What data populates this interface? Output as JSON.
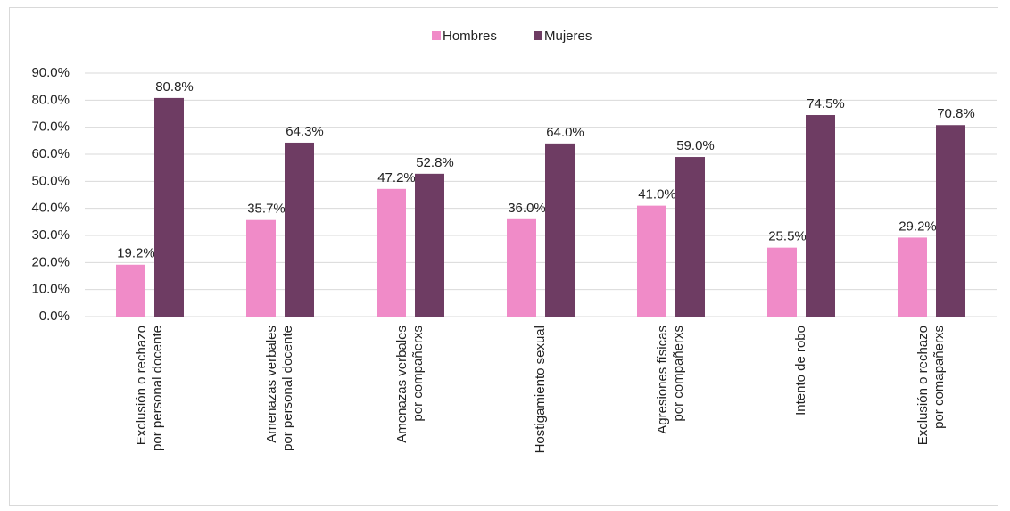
{
  "chart_data": {
    "type": "bar",
    "categories": [
      "Exclusión o rechazo\npor personal docente",
      "Amenazas verbales\npor personal docente",
      "Amenazas verbales\npor compañerxs",
      "Hostigamiento sexual",
      "Agresiones físicas\npor compañerxs",
      "Intento de robo",
      "Exclusión o rechazo\npor comapañerxs"
    ],
    "series": [
      {
        "name": "Hombres",
        "color": "#f08bc8",
        "values": [
          19.2,
          35.7,
          47.2,
          36.0,
          41.0,
          25.5,
          29.2
        ],
        "value_labels": [
          "19.2%",
          "35.7%",
          "47.2%",
          "36.0%",
          "41.0%",
          "25.5%",
          "29.2%"
        ]
      },
      {
        "name": "Mujeres",
        "color": "#6e3c63",
        "values": [
          80.8,
          64.3,
          52.8,
          64.0,
          59.0,
          74.5,
          70.8
        ],
        "value_labels": [
          "80.8%",
          "64.3%",
          "52.8%",
          "64.0%",
          "59.0%",
          "74.5%",
          "70.8%"
        ]
      }
    ],
    "ylim": [
      0,
      90
    ],
    "yticks": [
      {
        "value": 0,
        "label": "0.0%"
      },
      {
        "value": 10,
        "label": "10.0%"
      },
      {
        "value": 20,
        "label": "20.0%"
      },
      {
        "value": 30,
        "label": "30.0%"
      },
      {
        "value": 40,
        "label": "40.0%"
      },
      {
        "value": 50,
        "label": "50.0%"
      },
      {
        "value": 60,
        "label": "60.0%"
      },
      {
        "value": 70,
        "label": "70.0%"
      },
      {
        "value": 80,
        "label": "80.0%"
      },
      {
        "value": 90,
        "label": "90.0%"
      }
    ],
    "grid": true,
    "legend": "top"
  }
}
